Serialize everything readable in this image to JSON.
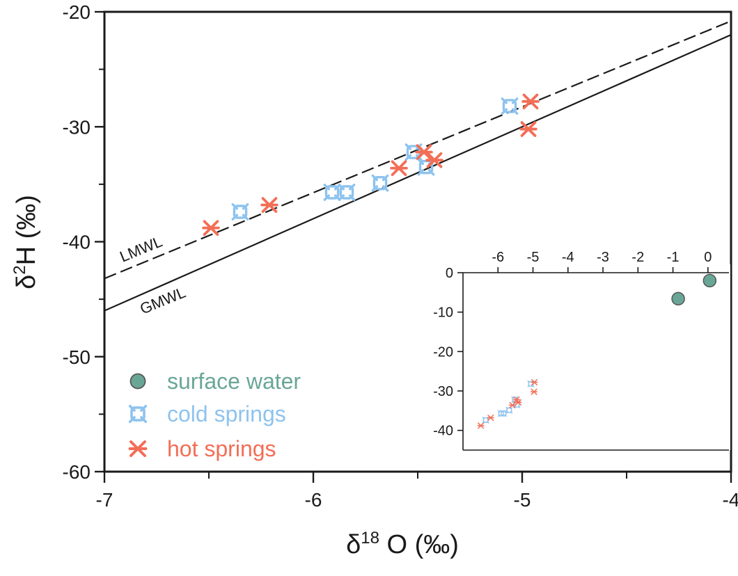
{
  "chart_data": [
    {
      "type": "scatter",
      "role": "main",
      "xlabel": {
        "delta": "δ",
        "sup": "18",
        "rest": " O (‰)"
      },
      "ylabel": {
        "delta": "δ",
        "sup": "2",
        "rest": "H  (‰)"
      },
      "xlim": [
        -7,
        -4
      ],
      "ylim": [
        -60,
        -20
      ],
      "xticks": [
        -7,
        -6,
        -5,
        -4
      ],
      "xticks_minor": [
        -6.5,
        -5.5,
        -4.5
      ],
      "yticks": [
        -60,
        -50,
        -40,
        -30,
        -20
      ],
      "yticks_minor": [
        -55,
        -45,
        -35,
        -25
      ],
      "grid": false,
      "legend_position": "bottom-left",
      "lines": [
        {
          "name": "LMWL",
          "style": "dashed",
          "x": [
            -7,
            -4
          ],
          "y": [
            -43.2,
            -20.8
          ]
        },
        {
          "name": "GMWL",
          "style": "solid",
          "x": [
            -7,
            -4
          ],
          "y": [
            -46.0,
            -22.0
          ]
        }
      ],
      "series": [
        {
          "name": "surface water",
          "marker": "circle",
          "color": "#6aa696",
          "points": []
        },
        {
          "name": "cold springs",
          "marker": "box-open",
          "color": "#8ec3ee",
          "points": [
            {
              "x": -6.35,
              "y": -37.4
            },
            {
              "x": -5.91,
              "y": -35.7
            },
            {
              "x": -5.84,
              "y": -35.7
            },
            {
              "x": -5.68,
              "y": -34.9
            },
            {
              "x": -5.52,
              "y": -32.2
            },
            {
              "x": -5.46,
              "y": -33.5
            },
            {
              "x": -5.06,
              "y": -28.2
            }
          ]
        },
        {
          "name": "hot springs",
          "marker": "asterisk",
          "color": "#f36e56",
          "points": [
            {
              "x": -6.49,
              "y": -38.8
            },
            {
              "x": -6.21,
              "y": -36.8
            },
            {
              "x": -5.59,
              "y": -33.6
            },
            {
              "x": -5.47,
              "y": -32.2
            },
            {
              "x": -5.42,
              "y": -32.9
            },
            {
              "x": -4.96,
              "y": -27.8
            },
            {
              "x": -4.97,
              "y": -30.2
            }
          ]
        }
      ]
    },
    {
      "type": "scatter",
      "role": "inset",
      "xlim": [
        -7,
        0.6
      ],
      "ylim": [
        -45,
        0
      ],
      "xticks": [
        -6,
        -5,
        -4,
        -3,
        -2,
        -1,
        0
      ],
      "yticks": [
        0,
        -10,
        -20,
        -30,
        -40
      ],
      "x_axis_position": "top",
      "grid": false,
      "series": [
        {
          "name": "surface water",
          "marker": "circle",
          "color": "#6aa696",
          "points": [
            {
              "x": -0.85,
              "y": -6.6
            },
            {
              "x": 0.05,
              "y": -2.0
            }
          ]
        },
        {
          "name": "cold springs",
          "marker": "box-open",
          "color": "#8ec3ee",
          "points": [
            {
              "x": -6.35,
              "y": -37.4
            },
            {
              "x": -5.91,
              "y": -35.7
            },
            {
              "x": -5.84,
              "y": -35.7
            },
            {
              "x": -5.68,
              "y": -34.9
            },
            {
              "x": -5.52,
              "y": -32.2
            },
            {
              "x": -5.46,
              "y": -33.5
            },
            {
              "x": -5.06,
              "y": -28.2
            }
          ]
        },
        {
          "name": "hot springs",
          "marker": "asterisk",
          "color": "#f36e56",
          "points": [
            {
              "x": -6.49,
              "y": -38.8
            },
            {
              "x": -6.21,
              "y": -36.8
            },
            {
              "x": -5.59,
              "y": -33.6
            },
            {
              "x": -5.47,
              "y": -32.2
            },
            {
              "x": -5.42,
              "y": -32.9
            },
            {
              "x": -4.96,
              "y": -27.8
            },
            {
              "x": -4.97,
              "y": -30.2
            }
          ]
        }
      ]
    }
  ]
}
